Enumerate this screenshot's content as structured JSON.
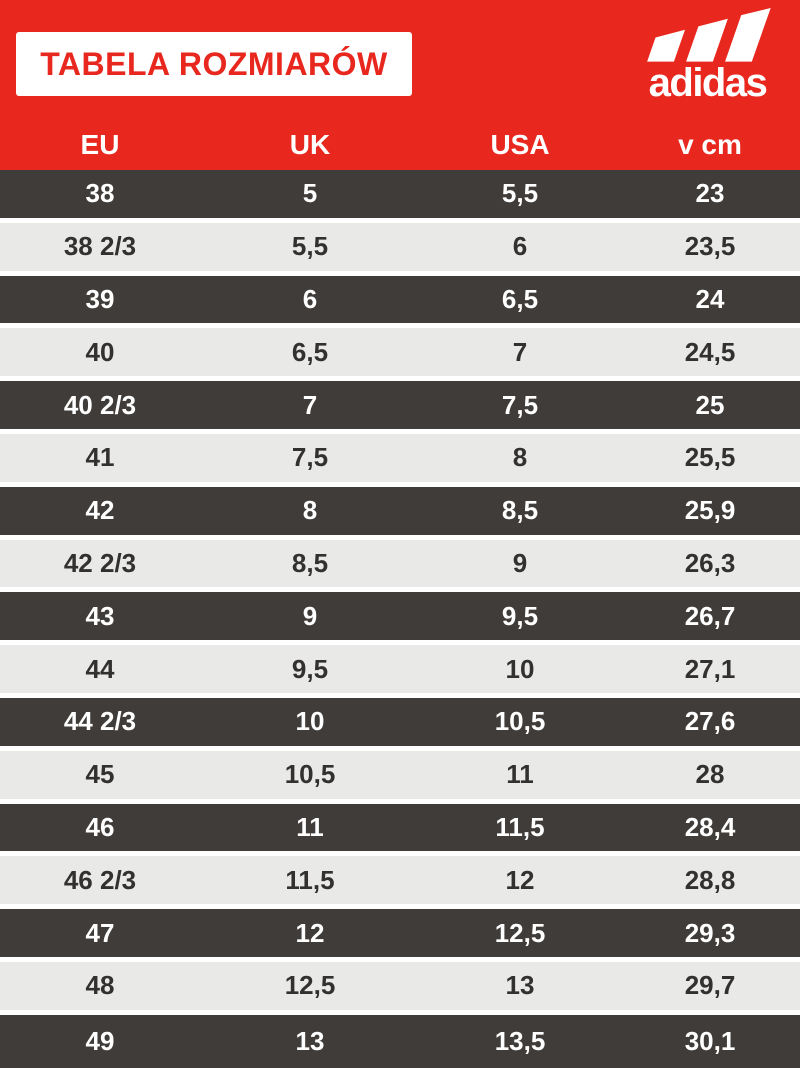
{
  "header": {
    "title": "TABELA ROZMIARÓW",
    "brand": "adidas"
  },
  "colors": {
    "red": "#e8281e",
    "dark_row": "#403c39",
    "light_row": "#e9e9e7",
    "white": "#ffffff"
  },
  "chart_data": {
    "type": "table",
    "title": "TABELA ROZMIARÓW",
    "columns": [
      "EU",
      "UK",
      "USA",
      "v cm"
    ],
    "rows": [
      [
        "38",
        "5",
        "5,5",
        "23"
      ],
      [
        "38 2/3",
        "5,5",
        "6",
        "23,5"
      ],
      [
        "39",
        "6",
        "6,5",
        "24"
      ],
      [
        "40",
        "6,5",
        "7",
        "24,5"
      ],
      [
        "40 2/3",
        "7",
        "7,5",
        "25"
      ],
      [
        "41",
        "7,5",
        "8",
        "25,5"
      ],
      [
        "42",
        "8",
        "8,5",
        "25,9"
      ],
      [
        "42 2/3",
        "8,5",
        "9",
        "26,3"
      ],
      [
        "43",
        "9",
        "9,5",
        "26,7"
      ],
      [
        "44",
        "9,5",
        "10",
        "27,1"
      ],
      [
        "44 2/3",
        "10",
        "10,5",
        "27,6"
      ],
      [
        "45",
        "10,5",
        "11",
        "28"
      ],
      [
        "46",
        "11",
        "11,5",
        "28,4"
      ],
      [
        "46 2/3",
        "11,5",
        "12",
        "28,8"
      ],
      [
        "47",
        "12",
        "12,5",
        "29,3"
      ],
      [
        "48",
        "12,5",
        "13",
        "29,7"
      ],
      [
        "49",
        "13",
        "13,5",
        "30,1"
      ]
    ]
  }
}
